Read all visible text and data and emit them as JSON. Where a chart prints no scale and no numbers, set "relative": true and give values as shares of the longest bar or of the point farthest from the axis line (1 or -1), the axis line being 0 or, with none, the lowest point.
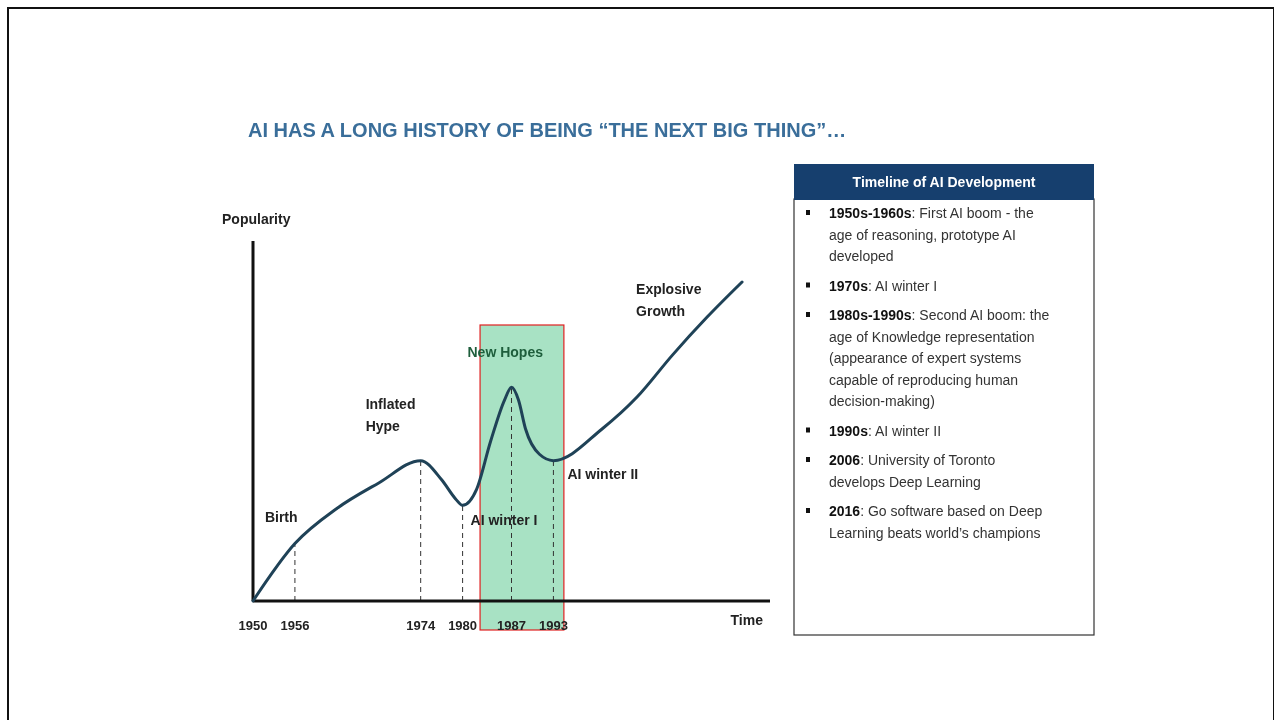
{
  "chart_data": [
    {
      "type": "line",
      "title": "AI HAS A LONG HISTORY OF BEING “THE NEXT BIG THING”…",
      "xlabel": "Time",
      "ylabel": "Popularity",
      "relative": true,
      "xlim": [
        1950,
        2024
      ],
      "xticks": [
        1950,
        1956,
        1974,
        1980,
        1987,
        1993
      ],
      "series": [
        {
          "color": "#1f4257",
          "x": [
            1950,
            1956,
            1962,
            1968,
            1974,
            1977,
            1979,
            1980,
            1982,
            1984,
            1986,
            1987,
            1988,
            1989,
            1991,
            1993,
            2000,
            2005,
            2010,
            2015,
            2020
          ],
          "values": [
            0,
            0.18,
            0.29,
            0.37,
            0.44,
            0.38,
            0.32,
            0.3,
            0.35,
            0.5,
            0.63,
            0.67,
            0.63,
            0.54,
            0.46,
            0.44,
            0.54,
            0.64,
            0.77,
            0.89,
            1.0
          ]
        }
      ],
      "ref_lines": [
        {
          "axis": "x",
          "value": 1956,
          "line_style": "dashed"
        },
        {
          "axis": "x",
          "value": 1974,
          "line_style": "dashed"
        },
        {
          "axis": "x",
          "value": 1980,
          "line_style": "dashed"
        },
        {
          "axis": "x",
          "value": 1987,
          "line_style": "dashed"
        },
        {
          "axis": "x",
          "value": 1993,
          "line_style": "dashed"
        }
      ],
      "bands": [
        {
          "axis": "x",
          "from": 1982.5,
          "to": 1994.5,
          "color": "#a8e2c4"
        }
      ],
      "annotations": [
        {
          "text": "Birth",
          "x": 1956,
          "y": 0.18
        },
        {
          "text": "Inflated\nHype",
          "x": 1974,
          "y": 0.44
        },
        {
          "text": "AI winter I",
          "x": 1980,
          "y": 0.3
        },
        {
          "text": "New Hopes",
          "x": 1987,
          "y": 0.67
        },
        {
          "text": "AI winter II",
          "x": 1993,
          "y": 0.44
        },
        "Explosive\nGrowth"
      ]
    },
    {
      "type": "other",
      "title": "Timeline of AI Development",
      "annotations": [
        "1950s-1960s: First AI boom - the age of reasoning, prototype AI developed",
        "1970s: AI winter I",
        "1980s-1990s: Second AI boom: the age of Knowledge representation (appearance of expert systems capable of reproducing human decision-making)",
        "1990s: AI winter II",
        "2006: University of Toronto develops Deep Learning",
        "2016: Go software based on Deep Learning beats world’s champions"
      ]
    }
  ]
}
